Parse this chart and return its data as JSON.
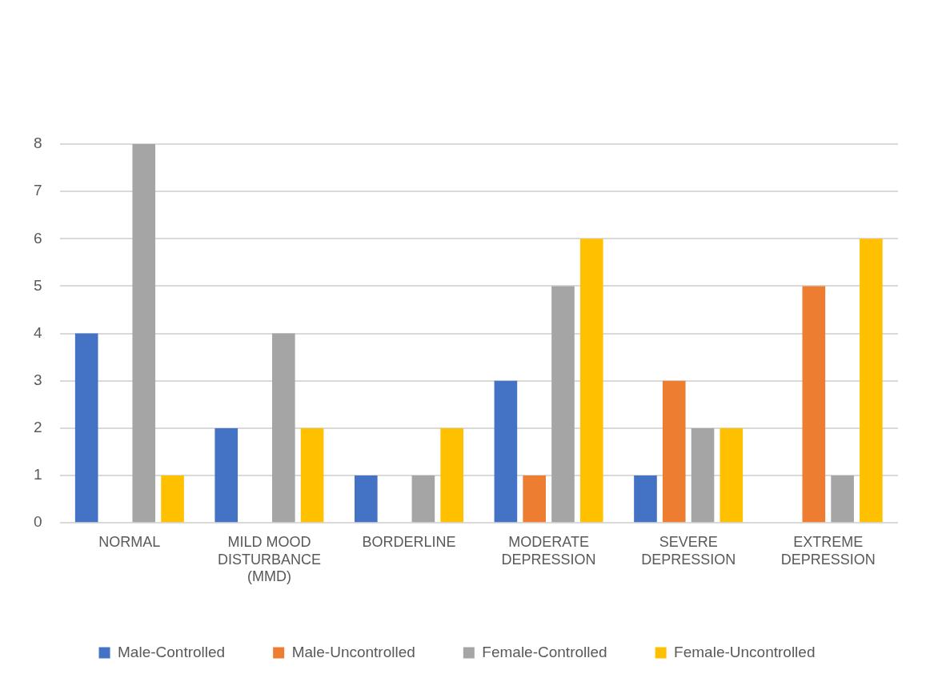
{
  "chart_data": {
    "type": "bar",
    "categories": [
      "NORMAL",
      "MILD MOOD DISTURBANCE (MMD)",
      "BORDERLINE",
      "MODERATE DEPRESSION",
      "SEVERE DEPRESSION",
      "EXTREME DEPRESSION"
    ],
    "series": [
      {
        "name": "Male-Controlled",
        "color": "#4472c4",
        "values": [
          4,
          2,
          1,
          3,
          1,
          0
        ]
      },
      {
        "name": "Male-Uncontrolled",
        "color": "#ed7d31",
        "values": [
          0,
          0,
          0,
          1,
          3,
          5
        ]
      },
      {
        "name": "Female-Controlled",
        "color": "#a5a5a5",
        "values": [
          8,
          4,
          1,
          5,
          2,
          1
        ]
      },
      {
        "name": "Female-Uncontrolled",
        "color": "#ffc000",
        "values": [
          1,
          2,
          2,
          6,
          2,
          6
        ]
      }
    ],
    "ylim": [
      0,
      8
    ],
    "yticks": [
      0,
      1,
      2,
      3,
      4,
      5,
      6,
      7,
      8
    ],
    "grid": "y",
    "legend": "bottom"
  }
}
